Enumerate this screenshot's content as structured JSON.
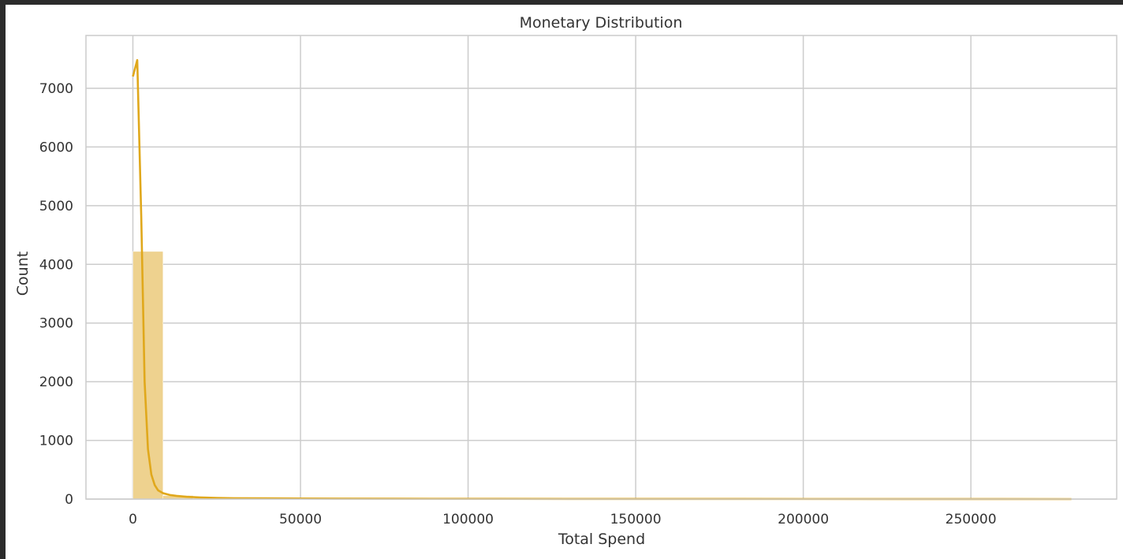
{
  "chart_data": {
    "type": "bar",
    "subtype": "histogram-with-kde",
    "title": "Monetary Distribution",
    "xlabel": "Total Spend",
    "ylabel": "Count",
    "xlim": [
      -14000,
      293500
    ],
    "ylim": [
      0,
      7900
    ],
    "x_ticks": [
      0,
      50000,
      100000,
      150000,
      200000,
      250000
    ],
    "x_tick_labels": [
      "0",
      "50000",
      "100000",
      "150000",
      "200000",
      "250000"
    ],
    "y_ticks": [
      0,
      1000,
      2000,
      3000,
      4000,
      5000,
      6000,
      7000
    ],
    "y_tick_labels": [
      "0",
      "1000",
      "2000",
      "3000",
      "4000",
      "5000",
      "6000",
      "7000"
    ],
    "grid": true,
    "bin_width": 9000,
    "bins": [
      {
        "x0": 0,
        "x1": 9000,
        "count": 4220
      },
      {
        "x0": 9000,
        "x1": 18000,
        "count": 60
      },
      {
        "x0": 18000,
        "x1": 27000,
        "count": 15
      },
      {
        "x0": 27000,
        "x1": 36000,
        "count": 8
      },
      {
        "x0": 36000,
        "x1": 45000,
        "count": 5
      },
      {
        "x0": 45000,
        "x1": 54000,
        "count": 3
      },
      {
        "x0": 54000,
        "x1": 63000,
        "count": 3
      },
      {
        "x0": 63000,
        "x1": 72000,
        "count": 2
      },
      {
        "x0": 72000,
        "x1": 81000,
        "count": 1
      },
      {
        "x0": 81000,
        "x1": 90000,
        "count": 1
      },
      {
        "x0": 90000,
        "x1": 99000,
        "count": 1
      },
      {
        "x0": 99000,
        "x1": 108000,
        "count": 1
      },
      {
        "x0": 108000,
        "x1": 117000,
        "count": 1
      },
      {
        "x0": 117000,
        "x1": 126000,
        "count": 1
      },
      {
        "x0": 126000,
        "x1": 135000,
        "count": 1
      },
      {
        "x0": 135000,
        "x1": 144000,
        "count": 0
      },
      {
        "x0": 144000,
        "x1": 153000,
        "count": 0
      },
      {
        "x0": 153000,
        "x1": 162000,
        "count": 1
      },
      {
        "x0": 162000,
        "x1": 171000,
        "count": 0
      },
      {
        "x0": 171000,
        "x1": 180000,
        "count": 0
      },
      {
        "x0": 180000,
        "x1": 189000,
        "count": 0
      },
      {
        "x0": 189000,
        "x1": 198000,
        "count": 0
      },
      {
        "x0": 198000,
        "x1": 207000,
        "count": 0
      },
      {
        "x0": 207000,
        "x1": 216000,
        "count": 0
      },
      {
        "x0": 216000,
        "x1": 225000,
        "count": 0
      },
      {
        "x0": 225000,
        "x1": 234000,
        "count": 0
      },
      {
        "x0": 234000,
        "x1": 243000,
        "count": 0
      },
      {
        "x0": 243000,
        "x1": 252000,
        "count": 0
      },
      {
        "x0": 252000,
        "x1": 261000,
        "count": 0
      },
      {
        "x0": 261000,
        "x1": 270000,
        "count": 0
      },
      {
        "x0": 270000,
        "x1": 279000,
        "count": 1
      }
    ],
    "kde": {
      "x": [
        0,
        1300,
        2500,
        3500,
        4500,
        5500,
        6500,
        7500,
        9000,
        11000,
        13000,
        16000,
        20000,
        25000,
        30000,
        40000,
        60000,
        90000,
        130000,
        180000,
        230000,
        280000
      ],
      "y": [
        7200,
        7480,
        4800,
        2000,
        850,
        420,
        240,
        150,
        100,
        70,
        55,
        40,
        28,
        20,
        15,
        12,
        8,
        5,
        3,
        2,
        1,
        0
      ]
    },
    "colors": {
      "bar_fill": "#eed28f",
      "kde_line": "#e0a81c",
      "grid": "#cccccc",
      "axis_frame": "#cccccc",
      "background": "#ffffff"
    }
  }
}
